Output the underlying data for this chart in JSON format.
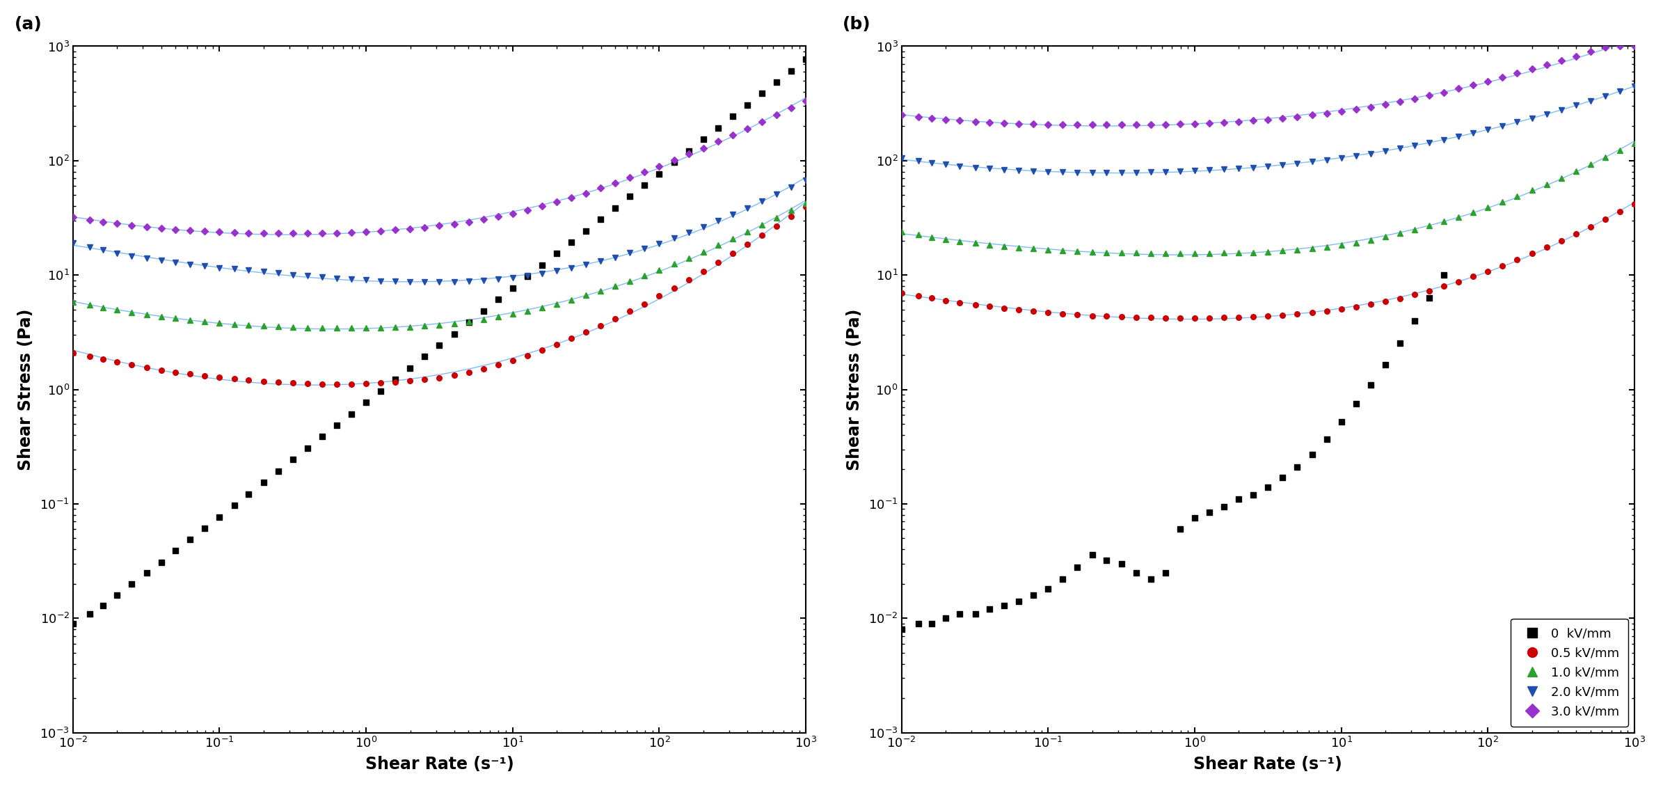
{
  "xlabel": "Shear Rate (s⁻¹)",
  "ylabel": "Shear Stress (Pa)",
  "xlim": [
    0.01,
    1000
  ],
  "ylim": [
    0.001,
    1000
  ],
  "colors": [
    "#000000",
    "#cc0000",
    "#2ca02c",
    "#1f4ead",
    "#9932CC"
  ],
  "legend_labels": [
    "0  kV/mm",
    "0.5 kV/mm",
    "1.0 kV/mm",
    "2.0 kV/mm",
    "3.0 kV/mm"
  ],
  "markers": [
    "s",
    "o",
    "^",
    "v",
    "D"
  ],
  "panel_a": {
    "black_x": [
      0.01,
      0.013,
      0.016,
      0.02,
      0.025,
      0.032,
      0.04,
      0.05,
      0.063,
      0.079,
      0.1,
      0.126,
      0.158,
      0.2,
      0.251,
      0.316,
      0.398,
      0.501,
      0.631,
      0.794,
      1.0,
      1.259,
      1.585,
      1.995,
      2.512,
      3.162,
      3.981,
      5.012,
      6.31,
      7.943,
      10.0,
      12.59,
      15.85,
      19.95,
      25.12,
      31.62,
      39.81,
      50.12,
      63.1,
      79.43,
      100.0,
      125.9,
      158.5,
      199.5,
      251.2,
      316.2,
      398.1,
      501.2,
      631.0,
      794.3,
      1000.0
    ],
    "black_y": [
      0.009,
      0.011,
      0.013,
      0.016,
      0.02,
      0.025,
      0.031,
      0.039,
      0.049,
      0.061,
      0.077,
      0.097,
      0.122,
      0.154,
      0.194,
      0.244,
      0.307,
      0.387,
      0.487,
      0.613,
      0.771,
      0.971,
      1.222,
      1.538,
      1.936,
      2.437,
      3.068,
      3.862,
      4.862,
      6.12,
      7.7,
      9.7,
      12.2,
      15.38,
      19.36,
      24.37,
      30.68,
      38.62,
      48.62,
      61.2,
      77.0,
      97.0,
      122.0,
      153.8,
      193.6,
      243.7,
      306.8,
      386.2,
      486.2,
      612.0,
      770.0
    ],
    "red_x": [
      0.01,
      0.013,
      0.016,
      0.02,
      0.025,
      0.032,
      0.04,
      0.05,
      0.063,
      0.079,
      0.1,
      0.126,
      0.158,
      0.2,
      0.251,
      0.316,
      0.398,
      0.501,
      0.631,
      0.794,
      1.0,
      1.259,
      1.585,
      1.995,
      2.512,
      3.162,
      3.981,
      5.012,
      6.31,
      7.943,
      10.0,
      12.59,
      15.85,
      19.95,
      25.12,
      31.62,
      39.81,
      50.12,
      63.1,
      79.43,
      100.0,
      125.9,
      158.5,
      199.5,
      251.2,
      316.2,
      398.1,
      501.2,
      631.0,
      794.3,
      1000.0
    ],
    "red_y": [
      2.1,
      1.95,
      1.85,
      1.75,
      1.65,
      1.55,
      1.48,
      1.42,
      1.37,
      1.32,
      1.28,
      1.24,
      1.21,
      1.18,
      1.16,
      1.14,
      1.13,
      1.12,
      1.12,
      1.12,
      1.13,
      1.14,
      1.16,
      1.19,
      1.22,
      1.27,
      1.33,
      1.41,
      1.51,
      1.64,
      1.79,
      1.98,
      2.21,
      2.48,
      2.8,
      3.18,
      3.63,
      4.17,
      4.82,
      5.6,
      6.55,
      7.7,
      9.1,
      10.8,
      12.9,
      15.4,
      18.5,
      22.3,
      26.9,
      32.5,
      39.5
    ],
    "green_x": [
      0.01,
      0.013,
      0.016,
      0.02,
      0.025,
      0.032,
      0.04,
      0.05,
      0.063,
      0.079,
      0.1,
      0.126,
      0.158,
      0.2,
      0.251,
      0.316,
      0.398,
      0.501,
      0.631,
      0.794,
      1.0,
      1.259,
      1.585,
      1.995,
      2.512,
      3.162,
      3.981,
      5.012,
      6.31,
      7.943,
      10.0,
      12.59,
      15.85,
      19.95,
      25.12,
      31.62,
      39.81,
      50.12,
      63.1,
      79.43,
      100.0,
      125.9,
      158.5,
      199.5,
      251.2,
      316.2,
      398.1,
      501.2,
      631.0,
      794.3,
      1000.0
    ],
    "green_y": [
      5.8,
      5.5,
      5.2,
      4.95,
      4.72,
      4.52,
      4.34,
      4.18,
      4.04,
      3.92,
      3.82,
      3.73,
      3.66,
      3.6,
      3.55,
      3.51,
      3.48,
      3.46,
      3.45,
      3.44,
      3.45,
      3.46,
      3.49,
      3.53,
      3.59,
      3.67,
      3.78,
      3.92,
      4.1,
      4.3,
      4.55,
      4.85,
      5.2,
      5.6,
      6.1,
      6.65,
      7.3,
      8.05,
      8.9,
      9.9,
      11.1,
      12.5,
      14.1,
      16.0,
      18.2,
      20.8,
      23.8,
      27.4,
      31.7,
      36.7,
      42.7
    ],
    "blue_x": [
      0.01,
      0.013,
      0.016,
      0.02,
      0.025,
      0.032,
      0.04,
      0.05,
      0.063,
      0.079,
      0.1,
      0.126,
      0.158,
      0.2,
      0.251,
      0.316,
      0.398,
      0.501,
      0.631,
      0.794,
      1.0,
      1.259,
      1.585,
      1.995,
      2.512,
      3.162,
      3.981,
      5.012,
      6.31,
      7.943,
      10.0,
      12.59,
      15.85,
      19.95,
      25.12,
      31.62,
      39.81,
      50.12,
      63.1,
      79.43,
      100.0,
      125.9,
      158.5,
      199.5,
      251.2,
      316.2,
      398.1,
      501.2,
      631.0,
      794.3,
      1000.0
    ],
    "blue_y": [
      19.0,
      17.5,
      16.5,
      15.5,
      14.7,
      14.0,
      13.4,
      12.9,
      12.4,
      12.0,
      11.6,
      11.3,
      11.0,
      10.7,
      10.4,
      10.1,
      9.85,
      9.6,
      9.4,
      9.2,
      9.05,
      8.9,
      8.8,
      8.75,
      8.7,
      8.7,
      8.75,
      8.85,
      9.0,
      9.2,
      9.5,
      9.85,
      10.3,
      10.85,
      11.5,
      12.3,
      13.2,
      14.3,
      15.6,
      17.1,
      18.9,
      21.0,
      23.5,
      26.4,
      29.8,
      33.8,
      38.5,
      44.1,
      50.7,
      58.5,
      67.8
    ],
    "purple_x": [
      0.01,
      0.013,
      0.016,
      0.02,
      0.025,
      0.032,
      0.04,
      0.05,
      0.063,
      0.079,
      0.1,
      0.126,
      0.158,
      0.2,
      0.251,
      0.316,
      0.398,
      0.501,
      0.631,
      0.794,
      1.0,
      1.259,
      1.585,
      1.995,
      2.512,
      3.162,
      3.981,
      5.012,
      6.31,
      7.943,
      10.0,
      12.59,
      15.85,
      19.95,
      25.12,
      31.62,
      39.81,
      50.12,
      63.1,
      79.43,
      100.0,
      125.9,
      158.5,
      199.5,
      251.2,
      316.2,
      398.1,
      501.2,
      631.0,
      794.3,
      1000.0
    ],
    "purple_y": [
      32.0,
      30.5,
      29.2,
      28.1,
      27.1,
      26.3,
      25.6,
      25.0,
      24.5,
      24.1,
      23.8,
      23.5,
      23.3,
      23.2,
      23.1,
      23.1,
      23.1,
      23.2,
      23.4,
      23.6,
      23.9,
      24.3,
      24.8,
      25.4,
      26.1,
      27.0,
      28.0,
      29.2,
      30.7,
      32.5,
      34.6,
      37.1,
      40.0,
      43.4,
      47.4,
      52.0,
      57.4,
      63.7,
      71.0,
      79.5,
      89.5,
      101.0,
      114.0,
      129.0,
      147.0,
      167.0,
      191.0,
      219.0,
      251.0,
      289.0,
      333.0
    ]
  },
  "panel_b": {
    "black_x": [
      0.01,
      0.013,
      0.016,
      0.02,
      0.025,
      0.032,
      0.04,
      0.05,
      0.063,
      0.079,
      0.1,
      0.126,
      0.158,
      0.2,
      0.251,
      0.316,
      0.398,
      0.501,
      0.631,
      0.794,
      1.0,
      1.259,
      1.585,
      1.995,
      2.512,
      3.162,
      3.981,
      5.012,
      6.31,
      7.943,
      10.0,
      12.59,
      15.85,
      19.95,
      25.12,
      31.62,
      39.81,
      50.12
    ],
    "black_y": [
      0.008,
      0.009,
      0.009,
      0.01,
      0.011,
      0.011,
      0.012,
      0.013,
      0.014,
      0.016,
      0.018,
      0.022,
      0.028,
      0.036,
      0.032,
      0.03,
      0.025,
      0.022,
      0.025,
      0.06,
      0.075,
      0.085,
      0.095,
      0.11,
      0.12,
      0.14,
      0.17,
      0.21,
      0.27,
      0.37,
      0.52,
      0.75,
      1.1,
      1.65,
      2.55,
      4.0,
      6.3,
      10.0
    ],
    "red_x": [
      0.01,
      0.013,
      0.016,
      0.02,
      0.025,
      0.032,
      0.04,
      0.05,
      0.063,
      0.079,
      0.1,
      0.126,
      0.158,
      0.2,
      0.251,
      0.316,
      0.398,
      0.501,
      0.631,
      0.794,
      1.0,
      1.259,
      1.585,
      1.995,
      2.512,
      3.162,
      3.981,
      5.012,
      6.31,
      7.943,
      10.0,
      12.59,
      15.85,
      19.95,
      25.12,
      31.62,
      39.81,
      50.12,
      63.1,
      79.43,
      100.0,
      125.9,
      158.5,
      199.5,
      251.2,
      316.2,
      398.1,
      501.2,
      631.0,
      794.3,
      1000.0
    ],
    "red_y": [
      7.0,
      6.6,
      6.3,
      6.0,
      5.75,
      5.52,
      5.32,
      5.14,
      4.98,
      4.83,
      4.7,
      4.59,
      4.5,
      4.42,
      4.36,
      4.31,
      4.27,
      4.24,
      4.22,
      4.21,
      4.21,
      4.22,
      4.24,
      4.27,
      4.32,
      4.38,
      4.46,
      4.56,
      4.69,
      4.85,
      5.04,
      5.27,
      5.55,
      5.88,
      6.27,
      6.74,
      7.3,
      7.97,
      8.77,
      9.72,
      10.8,
      12.1,
      13.6,
      15.4,
      17.5,
      20.0,
      23.0,
      26.5,
      30.8,
      35.8,
      42.0
    ],
    "green_x": [
      0.01,
      0.013,
      0.016,
      0.02,
      0.025,
      0.032,
      0.04,
      0.05,
      0.063,
      0.079,
      0.1,
      0.126,
      0.158,
      0.2,
      0.251,
      0.316,
      0.398,
      0.501,
      0.631,
      0.794,
      1.0,
      1.259,
      1.585,
      1.995,
      2.512,
      3.162,
      3.981,
      5.012,
      6.31,
      7.943,
      10.0,
      12.59,
      15.85,
      19.95,
      25.12,
      31.62,
      39.81,
      50.12,
      63.1,
      79.43,
      100.0,
      125.9,
      158.5,
      199.5,
      251.2,
      316.2,
      398.1,
      501.2,
      631.0,
      794.3,
      1000.0
    ],
    "green_y": [
      24.0,
      22.5,
      21.5,
      20.5,
      19.7,
      19.0,
      18.4,
      17.9,
      17.4,
      17.0,
      16.7,
      16.4,
      16.2,
      16.0,
      15.8,
      15.7,
      15.6,
      15.5,
      15.5,
      15.5,
      15.5,
      15.5,
      15.6,
      15.7,
      15.8,
      16.0,
      16.3,
      16.6,
      17.0,
      17.6,
      18.3,
      19.2,
      20.3,
      21.6,
      23.1,
      24.9,
      27.0,
      29.4,
      32.2,
      35.5,
      39.3,
      43.8,
      49.0,
      55.1,
      62.3,
      70.8,
      80.8,
      92.7,
      107.0,
      123.0,
      142.0
    ],
    "blue_x": [
      0.01,
      0.013,
      0.016,
      0.02,
      0.025,
      0.032,
      0.04,
      0.05,
      0.063,
      0.079,
      0.1,
      0.126,
      0.158,
      0.2,
      0.251,
      0.316,
      0.398,
      0.501,
      0.631,
      0.794,
      1.0,
      1.259,
      1.585,
      1.995,
      2.512,
      3.162,
      3.981,
      5.012,
      6.31,
      7.943,
      10.0,
      12.59,
      15.85,
      19.95,
      25.12,
      31.62,
      39.81,
      50.12,
      63.1,
      79.43,
      100.0,
      125.9,
      158.5,
      199.5,
      251.2,
      316.2,
      398.1,
      501.2,
      631.0,
      794.3,
      1000.0
    ],
    "blue_y": [
      105.0,
      100.0,
      96.0,
      92.5,
      89.5,
      87.0,
      85.0,
      83.3,
      82.0,
      80.8,
      80.0,
      79.4,
      79.0,
      78.8,
      78.7,
      78.8,
      79.0,
      79.4,
      79.9,
      80.6,
      81.5,
      82.6,
      83.9,
      85.4,
      87.2,
      89.3,
      91.8,
      94.6,
      97.8,
      101.5,
      105.6,
      110.3,
      115.5,
      121.4,
      128.0,
      135.4,
      143.6,
      152.7,
      162.9,
      174.3,
      187.0,
      201.2,
      217.3,
      235.4,
      256.0,
      279.0,
      305.0,
      334.0,
      367.0,
      403.0,
      444.0
    ],
    "purple_x": [
      0.01,
      0.013,
      0.016,
      0.02,
      0.025,
      0.032,
      0.04,
      0.05,
      0.063,
      0.079,
      0.1,
      0.126,
      0.158,
      0.2,
      0.251,
      0.316,
      0.398,
      0.501,
      0.631,
      0.794,
      1.0,
      1.259,
      1.585,
      1.995,
      2.512,
      3.162,
      3.981,
      5.012,
      6.31,
      7.943,
      10.0,
      12.59,
      15.85,
      19.95,
      25.12,
      31.62,
      39.81,
      50.12,
      63.1,
      79.43,
      100.0,
      125.9,
      158.5,
      199.5,
      251.2,
      316.2,
      398.1,
      501.2,
      631.0,
      794.3,
      1000.0
    ],
    "purple_y": [
      250.0,
      242.0,
      235.0,
      229.0,
      224.0,
      220.0,
      216.5,
      213.5,
      211.0,
      209.0,
      207.5,
      206.5,
      206.0,
      205.5,
      205.5,
      205.5,
      206.0,
      206.5,
      207.5,
      209.0,
      211.0,
      213.5,
      216.5,
      220.0,
      224.5,
      229.5,
      235.5,
      242.5,
      250.5,
      259.5,
      270.0,
      282.0,
      295.5,
      311.0,
      328.5,
      348.5,
      371.0,
      396.5,
      425.5,
      458.5,
      495.5,
      537.0,
      583.0,
      634.0,
      690.0,
      752.0,
      820.0,
      895.0,
      977.0,
      1000.0,
      1000.0
    ]
  },
  "fit_line_color": "#6ab0f5",
  "marker_size": 5.5,
  "background_color": "#ffffff"
}
